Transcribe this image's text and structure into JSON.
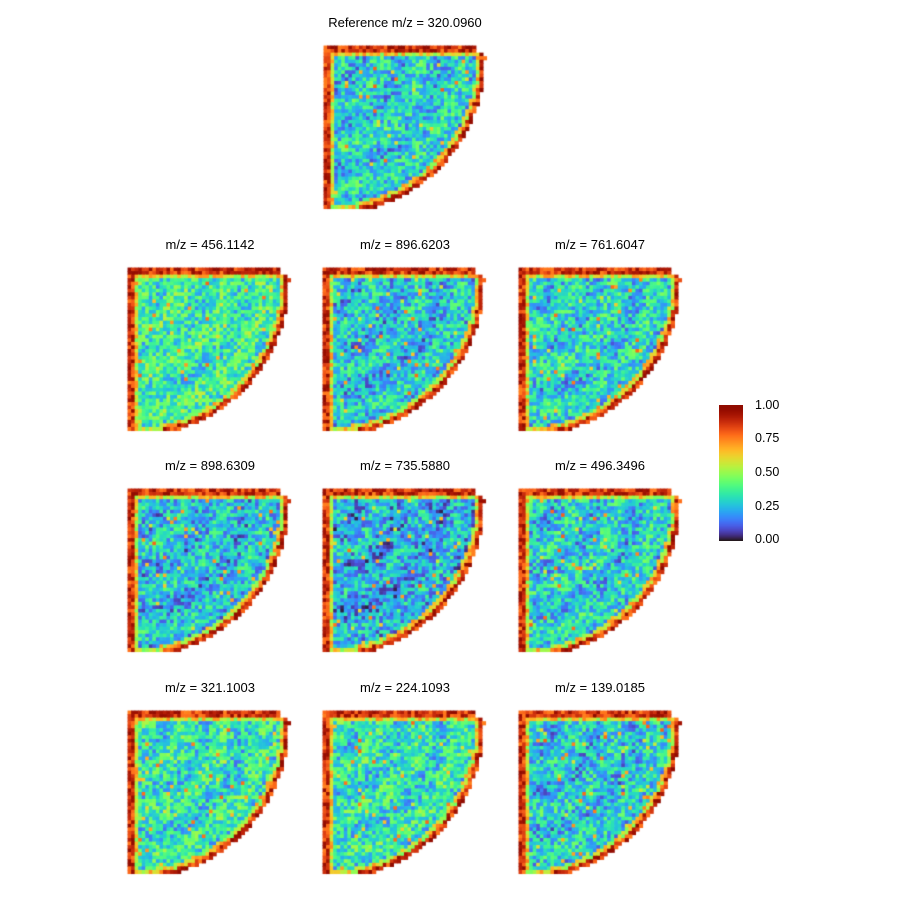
{
  "chart_data": {
    "type": "heatmap",
    "colormap": "turbo",
    "value_range": [
      0,
      1
    ],
    "colorbar": {
      "ticks": [
        1.0,
        0.75,
        0.5,
        0.25,
        0.0
      ],
      "labels": [
        "1.00",
        "0.75",
        "0.50",
        "0.25",
        "0.00"
      ]
    },
    "panels": [
      {
        "title": "Reference m/z = 320.0960",
        "mean_intensity": 0.28
      },
      {
        "title": "m/z = 456.1142",
        "mean_intensity": 0.36
      },
      {
        "title": "m/z = 896.6203",
        "mean_intensity": 0.26
      },
      {
        "title": "m/z = 761.6047",
        "mean_intensity": 0.29
      },
      {
        "title": "m/z = 898.6309",
        "mean_intensity": 0.25
      },
      {
        "title": "m/z = 735.5880",
        "mean_intensity": 0.22
      },
      {
        "title": "m/z = 496.3496",
        "mean_intensity": 0.28
      },
      {
        "title": "m/z = 321.1003",
        "mean_intensity": 0.33
      },
      {
        "title": "m/z = 224.1093",
        "mean_intensity": 0.33
      },
      {
        "title": "m/z = 139.0185",
        "mean_intensity": 0.27
      }
    ]
  }
}
